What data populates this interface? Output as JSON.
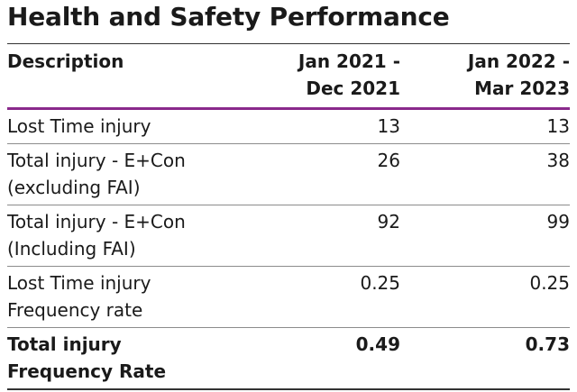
{
  "title": "Health and Safety Performance",
  "table": {
    "headers": [
      [
        "Description"
      ],
      [
        "Jan 2021 -",
        "Dec 2021"
      ],
      [
        "Jan 2022 -",
        "Mar 2023"
      ]
    ],
    "rows": [
      {
        "label": [
          "Lost Time injury"
        ],
        "v1": "13",
        "v2": "13",
        "bold": false
      },
      {
        "label": [
          "Total injury - E+Con",
          "(excluding FAI)"
        ],
        "v1": "26",
        "v2": "38",
        "bold": false
      },
      {
        "label": [
          "Total injury - E+Con",
          "(Including FAI)"
        ],
        "v1": "92",
        "v2": "99",
        "bold": false
      },
      {
        "label": [
          "Lost Time injury",
          "Frequency rate"
        ],
        "v1": "0.25",
        "v2": "0.25",
        "bold": false
      },
      {
        "label": [
          "Total injury",
          "Frequency Rate"
        ],
        "v1": "0.49",
        "v2": "0.73",
        "bold": true
      }
    ]
  },
  "colors": {
    "header_rule": "#8a2a8c",
    "row_rule": "#8c8c8c",
    "text": "#1a1a1a"
  }
}
